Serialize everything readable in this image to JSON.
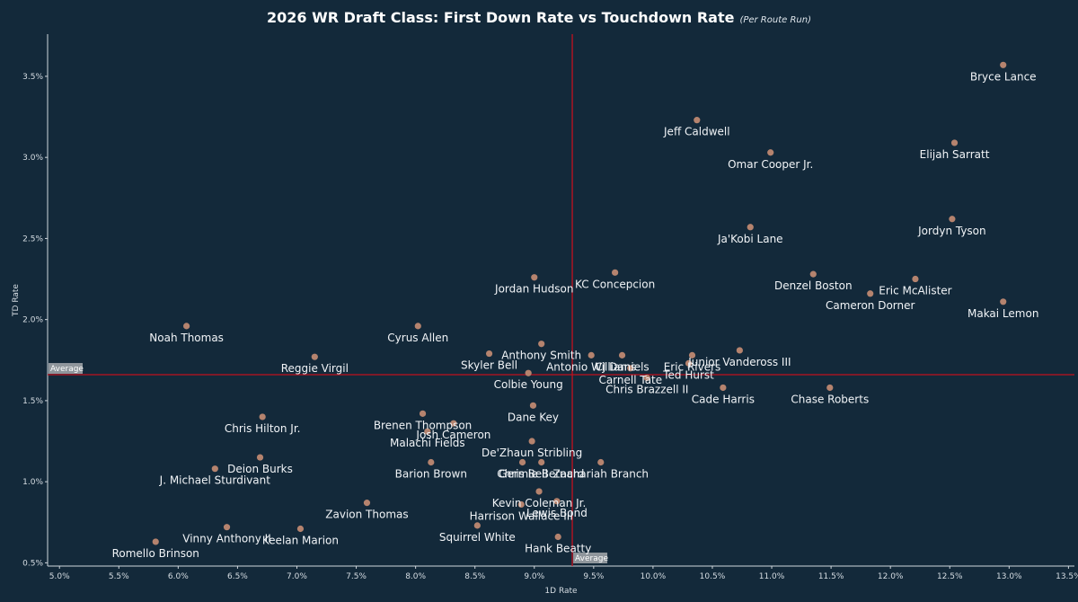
{
  "chart_data": {
    "type": "scatter",
    "title": "2026 WR Draft Class: First Down Rate vs Touchdown Rate",
    "subtitle": "(Per Route Run)",
    "xlabel": "1D Rate",
    "ylabel": "TD Rate",
    "xlim": [
      0.049,
      0.1355
    ],
    "ylim": [
      0.0048,
      0.0376
    ],
    "x_ticks": [
      0.05,
      0.055,
      0.06,
      0.065,
      0.07,
      0.075,
      0.08,
      0.085,
      0.09,
      0.095,
      0.1,
      0.105,
      0.11,
      0.115,
      0.12,
      0.125,
      0.13,
      0.135
    ],
    "x_tick_labels": [
      "5.0%",
      "5.5%",
      "6.0%",
      "6.5%",
      "7.0%",
      "7.5%",
      "8.0%",
      "8.5%",
      "9.0%",
      "9.5%",
      "10.0%",
      "10.5%",
      "11.0%",
      "11.5%",
      "12.0%",
      "12.5%",
      "13.0%",
      "13.5%"
    ],
    "y_ticks": [
      0.005,
      0.01,
      0.015,
      0.02,
      0.025,
      0.03,
      0.035
    ],
    "y_tick_labels": [
      "0.5%",
      "1.0%",
      "1.5%",
      "2.0%",
      "2.5%",
      "3.0%",
      "3.5%"
    ],
    "average_x": 0.0932,
    "average_y": 0.0166,
    "average_label": "Average",
    "grid": false,
    "colors": {
      "point": "#b5836e",
      "average_line": "#c0121f",
      "background": "#13293a"
    },
    "points": [
      {
        "name": "Bryce Lance",
        "x": 0.1295,
        "y": 0.0357
      },
      {
        "name": "Jeff Caldwell",
        "x": 0.1037,
        "y": 0.0323
      },
      {
        "name": "Elijah Sarratt",
        "x": 0.1254,
        "y": 0.0309
      },
      {
        "name": "Omar Cooper Jr.",
        "x": 0.1099,
        "y": 0.0303
      },
      {
        "name": "Jordyn Tyson",
        "x": 0.1252,
        "y": 0.0262
      },
      {
        "name": "Ja'Kobi Lane",
        "x": 0.1082,
        "y": 0.0257
      },
      {
        "name": "KC Concepcion",
        "x": 0.0968,
        "y": 0.0229
      },
      {
        "name": "Jordan Hudson",
        "x": 0.09,
        "y": 0.0226
      },
      {
        "name": "Denzel Boston",
        "x": 0.1135,
        "y": 0.0228
      },
      {
        "name": "Eric McAlister",
        "x": 0.1221,
        "y": 0.0225
      },
      {
        "name": "Cameron Dorner",
        "x": 0.1183,
        "y": 0.0216
      },
      {
        "name": "Makai Lemon",
        "x": 0.1295,
        "y": 0.0211
      },
      {
        "name": "Noah Thomas",
        "x": 0.0607,
        "y": 0.0196
      },
      {
        "name": "Cyrus Allen",
        "x": 0.0802,
        "y": 0.0196
      },
      {
        "name": "Anthony Smith",
        "x": 0.0906,
        "y": 0.0185
      },
      {
        "name": "Antonio Williams",
        "x": 0.0948,
        "y": 0.0178
      },
      {
        "name": "Junior Vandeross III",
        "x": 0.1073,
        "y": 0.0181
      },
      {
        "name": "CJ Daniels",
        "x": 0.0974,
        "y": 0.0178
      },
      {
        "name": "Eric Rivers",
        "x": 0.1033,
        "y": 0.0178
      },
      {
        "name": "Reggie Virgil",
        "x": 0.0715,
        "y": 0.0177
      },
      {
        "name": "Skyler Bell",
        "x": 0.0862,
        "y": 0.0179
      },
      {
        "name": "Ted Hurst",
        "x": 0.103,
        "y": 0.0173
      },
      {
        "name": "Carnell Tate",
        "x": 0.0981,
        "y": 0.017
      },
      {
        "name": "Colbie Young",
        "x": 0.0895,
        "y": 0.0167
      },
      {
        "name": "Chris Brazzell II",
        "x": 0.0995,
        "y": 0.0164
      },
      {
        "name": "Cade Harris",
        "x": 0.1059,
        "y": 0.0158
      },
      {
        "name": "Chase Roberts",
        "x": 0.1149,
        "y": 0.0158
      },
      {
        "name": "Dane Key",
        "x": 0.0899,
        "y": 0.0147
      },
      {
        "name": "Brenen Thompson",
        "x": 0.0806,
        "y": 0.0142
      },
      {
        "name": "Josh Cameron",
        "x": 0.0832,
        "y": 0.0136
      },
      {
        "name": "Chris Hilton Jr.",
        "x": 0.0671,
        "y": 0.014
      },
      {
        "name": "Malachi Fields",
        "x": 0.081,
        "y": 0.0131
      },
      {
        "name": "De'Zhaun Stribling",
        "x": 0.0898,
        "y": 0.0125
      },
      {
        "name": "Deion Burks",
        "x": 0.0669,
        "y": 0.0115
      },
      {
        "name": "Germie Bernard",
        "x": 0.0906,
        "y": 0.0112
      },
      {
        "name": "Barion Brown",
        "x": 0.0813,
        "y": 0.0112
      },
      {
        "name": "Zachariah Branch",
        "x": 0.0956,
        "y": 0.0112
      },
      {
        "name": "Chris Bell",
        "x": 0.089,
        "y": 0.0112
      },
      {
        "name": "J. Michael Sturdivant",
        "x": 0.0631,
        "y": 0.0108
      },
      {
        "name": "Kevin Coleman Jr.",
        "x": 0.0904,
        "y": 0.0094
      },
      {
        "name": "Lewis Bond",
        "x": 0.0919,
        "y": 0.0088
      },
      {
        "name": "Zavion Thomas",
        "x": 0.0759,
        "y": 0.0087
      },
      {
        "name": "Harrison Wallace III",
        "x": 0.0889,
        "y": 0.0086
      },
      {
        "name": "Vinny Anthony II",
        "x": 0.0641,
        "y": 0.0072
      },
      {
        "name": "Keelan Marion",
        "x": 0.0703,
        "y": 0.0071
      },
      {
        "name": "Squirrel White",
        "x": 0.0852,
        "y": 0.0073
      },
      {
        "name": "Hank Beatty",
        "x": 0.092,
        "y": 0.0066
      },
      {
        "name": "Romello Brinson",
        "x": 0.0581,
        "y": 0.0063
      }
    ]
  }
}
